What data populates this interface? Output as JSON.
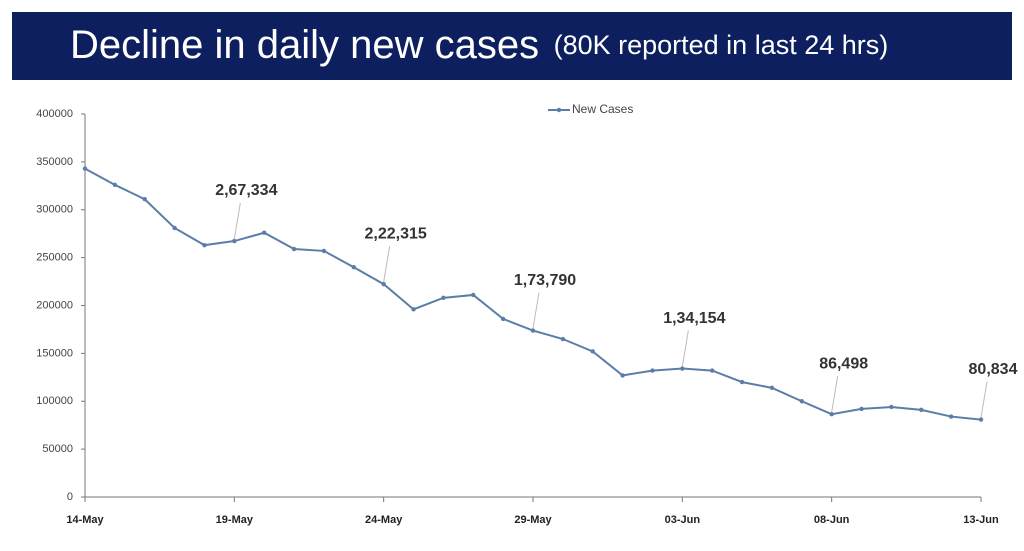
{
  "chart_data": {
    "type": "line",
    "title": "Decline in daily new cases",
    "subtitle": "(80K reported in last 24 hrs)",
    "categories": [
      "14-May",
      null,
      null,
      null,
      null,
      "19-May",
      null,
      null,
      null,
      null,
      "24-May",
      null,
      null,
      null,
      null,
      "29-May",
      null,
      null,
      null,
      null,
      "03-Jun",
      null,
      null,
      null,
      null,
      "08-Jun",
      null,
      null,
      null,
      null,
      "13-Jun"
    ],
    "series": [
      {
        "name": "New Cases",
        "color": "#5b7ea8",
        "values": [
          343000,
          326000,
          311000,
          281000,
          263000,
          267334,
          276000,
          259000,
          257000,
          240000,
          222315,
          196000,
          208000,
          211000,
          186000,
          173790,
          165000,
          152000,
          127000,
          132000,
          134154,
          132000,
          120000,
          114000,
          100000,
          86498,
          92000,
          94000,
          91000,
          84000,
          80834
        ],
        "value_labels": [
          null,
          null,
          null,
          null,
          null,
          "2,67,334",
          null,
          null,
          null,
          null,
          "2,22,315",
          null,
          null,
          null,
          null,
          "1,73,790",
          null,
          null,
          null,
          null,
          "1,34,154",
          null,
          null,
          null,
          null,
          "86,498",
          null,
          null,
          null,
          null,
          "80,834"
        ]
      }
    ],
    "ylim": [
      0,
      400000
    ],
    "yticks": [
      0,
      50000,
      100000,
      150000,
      200000,
      250000,
      300000,
      350000,
      400000
    ],
    "legend": "top"
  }
}
